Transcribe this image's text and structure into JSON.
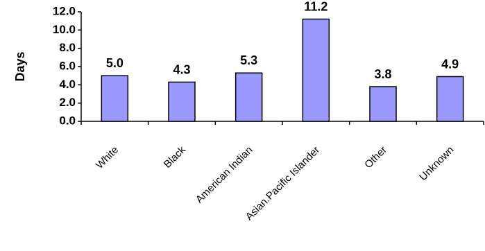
{
  "chart_data": {
    "type": "bar",
    "categories": [
      "White",
      "Black",
      "American Indian",
      "Asian.Pacific Islander",
      "Other",
      "Unknown"
    ],
    "values": [
      5.0,
      4.3,
      5.3,
      11.2,
      3.8,
      4.9
    ],
    "data_labels": [
      "5.0",
      "4.3",
      "5.3",
      "11.2",
      "3.8",
      "4.9"
    ],
    "ylabel": "Days",
    "xlabel": "",
    "title": "",
    "ylim": [
      0,
      12
    ],
    "yticks": [
      "0.0",
      "2.0",
      "4.0",
      "6.0",
      "8.0",
      "10.0",
      "12.0"
    ],
    "grid": false,
    "legend": "none",
    "bar_color": "#9999ff"
  }
}
